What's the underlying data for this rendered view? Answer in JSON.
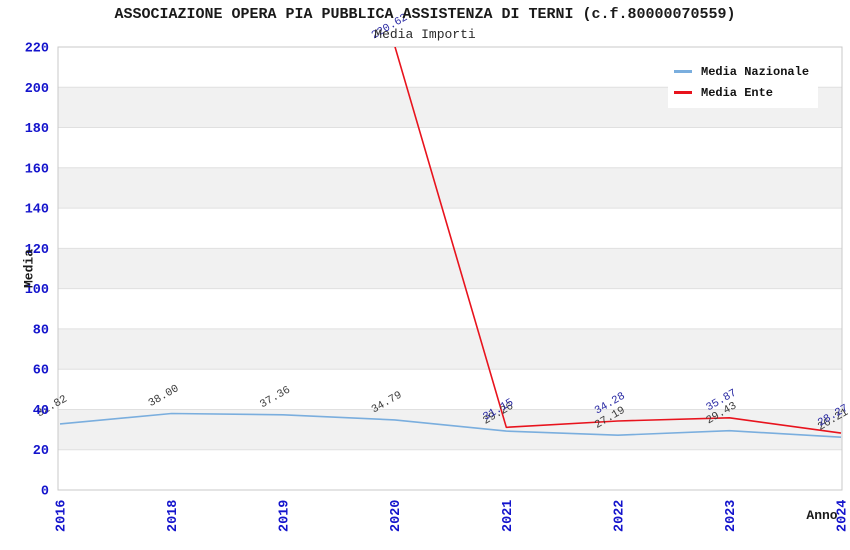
{
  "chart_data": {
    "type": "line",
    "title": "ASSOCIAZIONE OPERA PIA PUBBLICA ASSISTENZA DI TERNI (c.f.80000070559)",
    "subtitle": "Media Importi",
    "xlabel": "Anno",
    "ylabel": "Media",
    "categories": [
      "2016",
      "2018",
      "2019",
      "2020",
      "2021",
      "2022",
      "2023",
      "2024"
    ],
    "series": [
      {
        "name": "Media Nazionale",
        "color": "#7aaede",
        "label_color": "#3a3a3a",
        "values": [
          32.82,
          38.0,
          37.36,
          34.79,
          29.26,
          27.19,
          29.43,
          26.21
        ]
      },
      {
        "name": "Media Ente",
        "color": "#e8131d",
        "label_color": "#2929a3",
        "values": [
          null,
          null,
          null,
          220.62,
          31.15,
          34.28,
          35.87,
          28.27
        ]
      }
    ],
    "ylim": [
      0,
      220
    ],
    "ytick_step": 20,
    "grid": "horizontal",
    "background_bands": true,
    "legend_position": "top-right",
    "colors": {
      "tick_label": "#1414cc",
      "band_gray": "#f1f1f1",
      "gridline": "#e0e0e0",
      "border": "#c9c9c9"
    }
  }
}
